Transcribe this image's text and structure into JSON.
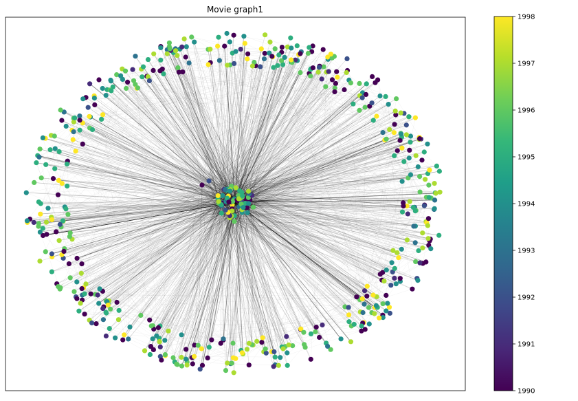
{
  "title": "Movie graph1",
  "colorbar": {
    "colormap": "viridis",
    "min": 1990,
    "max": 1998,
    "ticks": [
      "1990",
      "1991",
      "1992",
      "1993",
      "1994",
      "1995",
      "1996",
      "1997",
      "1998"
    ],
    "stops": [
      "#440154",
      "#482878",
      "#3e4989",
      "#31688e",
      "#26828e",
      "#1f9e89",
      "#35b779",
      "#6ece58",
      "#b5de2b",
      "#fde725"
    ]
  },
  "graph": {
    "layout": "ring-with-central-cluster",
    "edge_color": "#000000",
    "node_color_attribute": "year",
    "years_present": [
      1990,
      1991,
      1992,
      1993,
      1994,
      1995,
      1996,
      1997,
      1998
    ]
  }
}
